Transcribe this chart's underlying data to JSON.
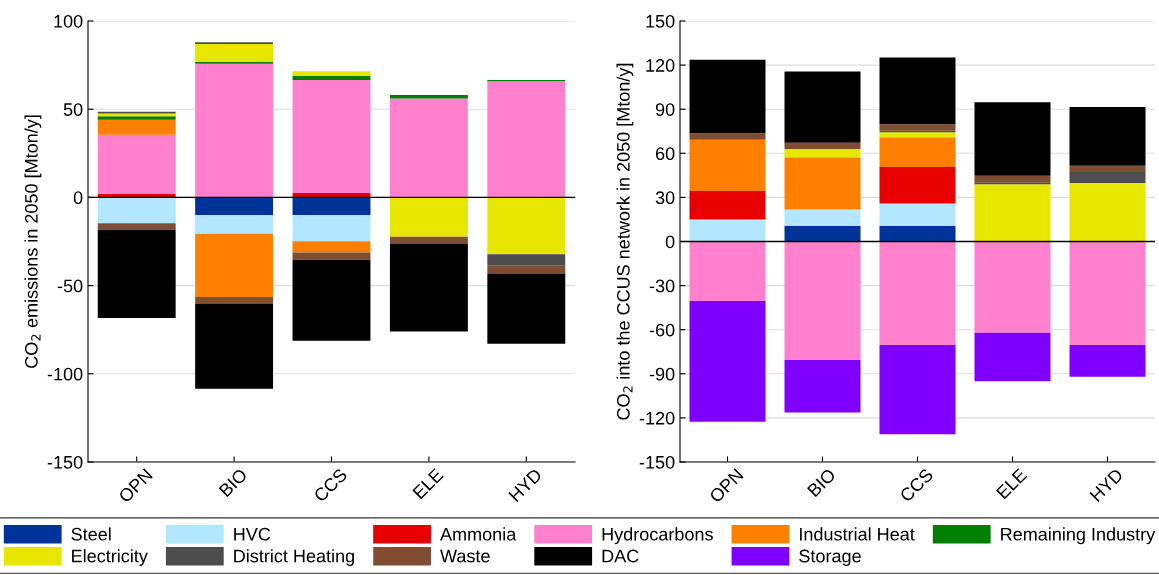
{
  "chart_data": [
    {
      "type": "bar",
      "stacked": true,
      "ylabel": "CO$_{2}$ emissions in 2050 [Mton/y]",
      "categories": [
        "OPN",
        "BIO",
        "CCS",
        "ELE",
        "HYD"
      ],
      "ylim": [
        -150,
        100
      ],
      "yticks": [
        -150,
        -100,
        -50,
        0,
        50,
        100
      ],
      "grid": "y",
      "legend": "bottom",
      "ref_lines": [
        {
          "axis": "y",
          "value": 0,
          "color": "#000000"
        }
      ],
      "series": [
        {
          "name": "Steel",
          "color": "#003399",
          "values": [
            0,
            -10.1,
            -10.1,
            0,
            0
          ]
        },
        {
          "name": "HVC",
          "color": "#b3e6ff",
          "values": [
            -14.6,
            -10.5,
            -14.7,
            0,
            0
          ]
        },
        {
          "name": "Ammonia",
          "color": "#e60000",
          "values": [
            2,
            0,
            2.5,
            0,
            0
          ]
        },
        {
          "name": "Hydrocarbons",
          "color": "#ff80cc",
          "values": [
            33.5,
            75.7,
            64,
            56,
            65.8
          ]
        },
        {
          "name": "Industrial Heat",
          "color": "#ff8000",
          "values": [
            8.5,
            -35.9,
            -6.5,
            0,
            0
          ]
        },
        {
          "name": "Remaining Industry",
          "color": "#008000",
          "values": [
            2,
            1,
            2.3,
            2,
            0.7
          ]
        },
        {
          "name": "Electricity",
          "color": "#e6e600",
          "values": [
            1.5,
            10.2,
            2.7,
            -22.3,
            -32.2
          ]
        },
        {
          "name": "District Heating",
          "color": "#4d4d4d",
          "values": [
            1,
            1,
            0,
            null,
            -6.5
          ]
        },
        {
          "name": "Waste",
          "color": "#804d33",
          "values": [
            -3.7,
            -3.7,
            -4,
            -3.8,
            -4.5
          ]
        },
        {
          "name": "DAC",
          "color": "#000000",
          "values": [
            -50,
            -48.3,
            -45.9,
            -49.9,
            -39.7
          ]
        }
      ]
    },
    {
      "type": "bar",
      "stacked": true,
      "ylabel": "CO$_{2}$ into the CCUS network in 2050 [Mton/y]",
      "categories": [
        "OPN",
        "BIO",
        "CCS",
        "ELE",
        "HYD"
      ],
      "ylim": [
        -150,
        150
      ],
      "yticks": [
        -150,
        -120,
        -90,
        -60,
        -30,
        0,
        30,
        60,
        90,
        120,
        150
      ],
      "grid": "y",
      "legend": "bottom",
      "ref_lines": [
        {
          "axis": "y",
          "value": 0,
          "color": "#000000"
        }
      ],
      "series": [
        {
          "name": "Steel",
          "color": "#003399",
          "values": [
            0,
            10.7,
            10.7,
            0,
            0
          ]
        },
        {
          "name": "HVC",
          "color": "#b3e6ff",
          "values": [
            14.9,
            11,
            15.2,
            0,
            0
          ]
        },
        {
          "name": "Ammonia",
          "color": "#e60000",
          "values": [
            19.4,
            0,
            24.8,
            0,
            0
          ]
        },
        {
          "name": "Hydrocarbons",
          "color": "#ff80cc",
          "values": [
            -40.4,
            -80.6,
            -70.4,
            -62,
            -70.4
          ]
        },
        {
          "name": "Industrial Heat",
          "color": "#ff8000",
          "values": [
            34.9,
            35.6,
            20.2,
            0,
            0
          ]
        },
        {
          "name": "Electricity",
          "color": "#e6e600",
          "values": [
            0,
            5.6,
            3.5,
            39,
            39.8
          ]
        },
        {
          "name": "District Heating",
          "color": "#4d4d4d",
          "values": [
            0,
            0,
            0.9,
            1.3,
            7.4
          ]
        },
        {
          "name": "Waste",
          "color": "#804d33",
          "values": [
            4.4,
            4.3,
            4.5,
            4.5,
            4.3
          ]
        },
        {
          "name": "DAC",
          "color": "#000000",
          "values": [
            50,
            48.5,
            45.3,
            50,
            40
          ]
        },
        {
          "name": "Storage",
          "color": "#8000ff",
          "values": [
            -82.3,
            -35.8,
            -60.7,
            -33,
            -21.6
          ]
        }
      ]
    }
  ]
}
